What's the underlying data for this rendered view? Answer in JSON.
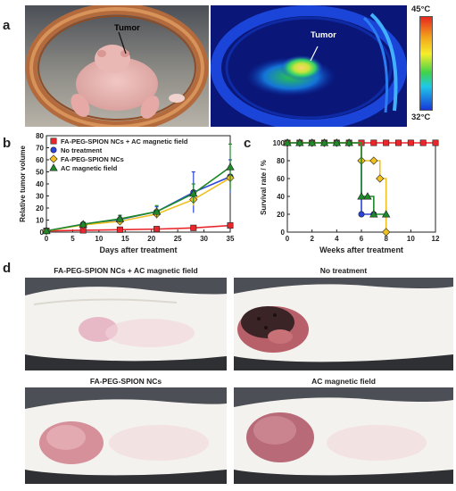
{
  "figure": {
    "panel_labels": [
      "a",
      "b",
      "c",
      "d"
    ],
    "panel_a": {
      "photo_tumor_label": "Tumor",
      "thermal_tumor_label": "Tumor",
      "scale_max": "45°C",
      "scale_min": "32°C"
    },
    "panel_d": {
      "titles": [
        "FA-PEG-SPION NCs + AC magnetic field",
        "No treatment",
        "FA-PEG-SPION NCs",
        "AC magnetic field"
      ]
    }
  },
  "colors": {
    "red": "#e8262b",
    "blue": "#2b43d8",
    "yellow": "#f0c020",
    "green": "#1e8a2a"
  },
  "chart_data": [
    {
      "type": "line",
      "panel": "b",
      "xlabel": "Days after treatment",
      "ylabel": "Relative tumor volume",
      "xlim": [
        0,
        35
      ],
      "ylim": [
        0,
        80
      ],
      "xticks": [
        0,
        5,
        10,
        15,
        20,
        25,
        30,
        35
      ],
      "yticks": [
        0,
        10,
        20,
        30,
        40,
        50,
        60,
        70,
        80
      ],
      "x": [
        0,
        7,
        14,
        21,
        28,
        35
      ],
      "legend_position": "top-left",
      "series": [
        {
          "name": "FA-PEG-SPION NCs + AC magnetic field",
          "color": "#e8262b",
          "marker": "square",
          "values": [
            1,
            1.5,
            2,
            2.5,
            3.5,
            5.5
          ],
          "errors": [
            0.3,
            0.5,
            0.6,
            0.8,
            1,
            1.5
          ]
        },
        {
          "name": "No treatment",
          "color": "#2b43d8",
          "marker": "circle",
          "values": [
            1,
            6.5,
            10.5,
            17,
            33,
            46
          ],
          "errors": [
            0.5,
            2,
            3,
            4,
            17,
            14
          ]
        },
        {
          "name": "FA-PEG-SPION NCs",
          "color": "#f0c020",
          "marker": "diamond",
          "values": [
            1,
            6,
            9,
            15,
            27,
            45
          ],
          "errors": [
            0.5,
            2,
            3,
            4,
            5,
            8
          ]
        },
        {
          "name": "AC magnetic field",
          "color": "#1e8a2a",
          "marker": "triangle",
          "values": [
            1,
            6.5,
            11,
            17,
            32,
            54
          ],
          "errors": [
            0.5,
            2,
            3,
            5,
            8,
            19
          ]
        }
      ]
    },
    {
      "type": "line",
      "panel": "c",
      "step": true,
      "xlabel": "Weeks after treatment",
      "ylabel": "Survival rate / %",
      "xlim": [
        0,
        12
      ],
      "ylim": [
        0,
        100
      ],
      "xticks": [
        0,
        2,
        4,
        6,
        8,
        10,
        12
      ],
      "yticks": [
        0,
        20,
        40,
        60,
        80,
        100
      ],
      "series": [
        {
          "color": "#e8262b",
          "marker": "square",
          "x": [
            0,
            1,
            2,
            3,
            4,
            5,
            6,
            7,
            8,
            9,
            10,
            11,
            12
          ],
          "values": [
            100,
            100,
            100,
            100,
            100,
            100,
            100,
            100,
            100,
            100,
            100,
            100,
            100
          ]
        },
        {
          "color": "#2b43d8",
          "marker": "circle",
          "x": [
            0,
            1,
            2,
            3,
            4,
            5,
            6,
            7
          ],
          "values": [
            100,
            100,
            100,
            100,
            100,
            100,
            20,
            20
          ]
        },
        {
          "color": "#f0c020",
          "marker": "diamond",
          "x": [
            0,
            1,
            2,
            3,
            4,
            5,
            6,
            7,
            7.5,
            8
          ],
          "values": [
            100,
            100,
            100,
            100,
            100,
            100,
            80,
            80,
            60,
            0
          ]
        },
        {
          "color": "#1e8a2a",
          "marker": "triangle",
          "x": [
            0,
            1,
            2,
            3,
            4,
            5,
            6,
            6.5,
            7,
            8
          ],
          "values": [
            100,
            100,
            100,
            100,
            100,
            100,
            40,
            40,
            20,
            20
          ]
        }
      ]
    }
  ]
}
